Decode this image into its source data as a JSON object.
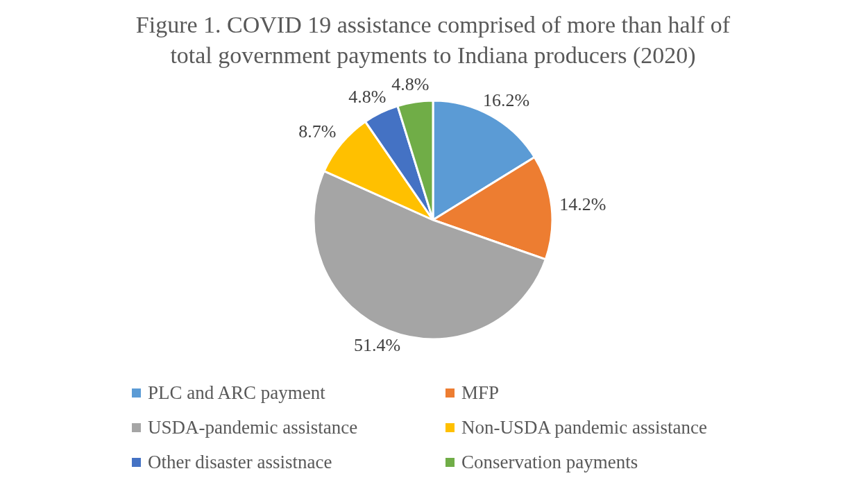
{
  "chart_data": {
    "type": "pie",
    "title": "Figure 1. COVID 19 assistance comprised of more than half of total government payments to Indiana producers (2020)",
    "categories": [
      "PLC and ARC payment",
      "MFP",
      "USDA-pandemic assistance",
      "Non-USDA pandemic assistance",
      "Other disaster assistnace",
      "Conservation payments"
    ],
    "values": [
      16.2,
      14.2,
      51.4,
      8.7,
      4.8,
      4.8
    ],
    "colors": [
      "#5b9bd5",
      "#ed7d31",
      "#a5a5a5",
      "#ffc000",
      "#4472c4",
      "#70ad47"
    ],
    "value_labels": [
      "16.2%",
      "14.2%",
      "51.4%",
      "8.7%",
      "4.8%",
      "4.8%"
    ],
    "legend": "bottom"
  }
}
